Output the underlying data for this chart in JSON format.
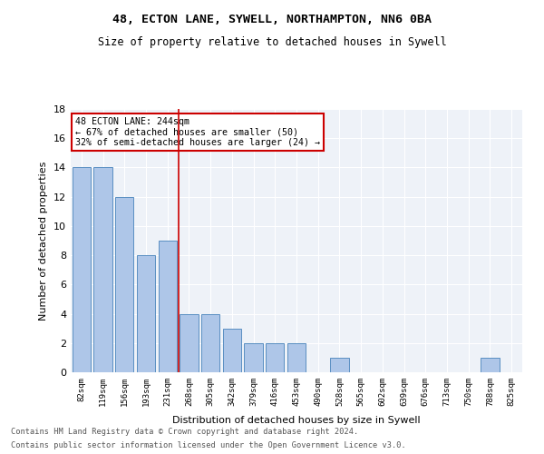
{
  "title1": "48, ECTON LANE, SYWELL, NORTHAMPTON, NN6 0BA",
  "title2": "Size of property relative to detached houses in Sywell",
  "xlabel": "Distribution of detached houses by size in Sywell",
  "ylabel": "Number of detached properties",
  "categories": [
    "82sqm",
    "119sqm",
    "156sqm",
    "193sqm",
    "231sqm",
    "268sqm",
    "305sqm",
    "342sqm",
    "379sqm",
    "416sqm",
    "453sqm",
    "490sqm",
    "528sqm",
    "565sqm",
    "602sqm",
    "639sqm",
    "676sqm",
    "713sqm",
    "750sqm",
    "788sqm",
    "825sqm"
  ],
  "values": [
    14,
    14,
    12,
    8,
    9,
    4,
    4,
    3,
    2,
    2,
    2,
    0,
    1,
    0,
    0,
    0,
    0,
    0,
    0,
    1,
    0
  ],
  "bar_color": "#aec6e8",
  "bar_edge_color": "#5a8fc2",
  "vline_x": 4.5,
  "vline_color": "#cc0000",
  "annotation_line1": "48 ECTON LANE: 244sqm",
  "annotation_line2": "← 67% of detached houses are smaller (50)",
  "annotation_line3": "32% of semi-detached houses are larger (24) →",
  "annotation_box_color": "#cc0000",
  "ylim": [
    0,
    18
  ],
  "yticks": [
    0,
    2,
    4,
    6,
    8,
    10,
    12,
    14,
    16,
    18
  ],
  "footnote1": "Contains HM Land Registry data © Crown copyright and database right 2024.",
  "footnote2": "Contains public sector information licensed under the Open Government Licence v3.0.",
  "bg_color": "#eef2f8",
  "fig_bg_color": "#ffffff"
}
